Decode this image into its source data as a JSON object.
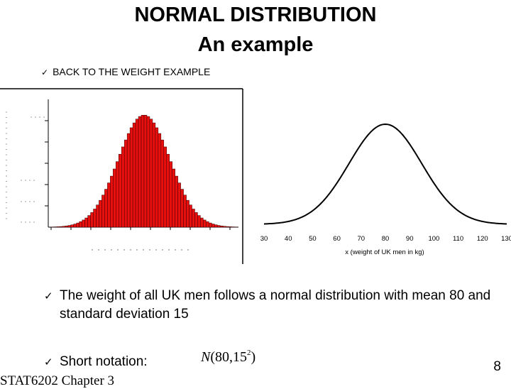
{
  "title_line1": "NORMAL DISTRIBUTION",
  "title_line2": "An example",
  "bullet1": "BACK TO THE WEIGHT EXAMPLE",
  "bullet2": "The weight of all UK men follows a normal distribution with mean 80 and standard deviation 15",
  "bullet3": "Short notation:",
  "notation": {
    "symbol": "N",
    "args": "(80,15",
    "exponent": "2",
    "close": ")"
  },
  "page_number": "8",
  "footer": "STAT6202 Chapter 3",
  "colors": {
    "bar_fill": "#e8100f",
    "bar_edge": "#3a0000",
    "curve": "#000000"
  },
  "chart_data": [
    {
      "type": "bar",
      "description": "histogram approximating a normal curve",
      "mean": 80,
      "sd": 15
    },
    {
      "type": "line",
      "xlabel": "x (weight of UK men in kg)",
      "x_ticks": [
        30,
        40,
        50,
        60,
        70,
        80,
        90,
        100,
        110,
        120,
        130
      ],
      "xlim": [
        30,
        130
      ],
      "mean": 80,
      "sd": 15
    }
  ]
}
